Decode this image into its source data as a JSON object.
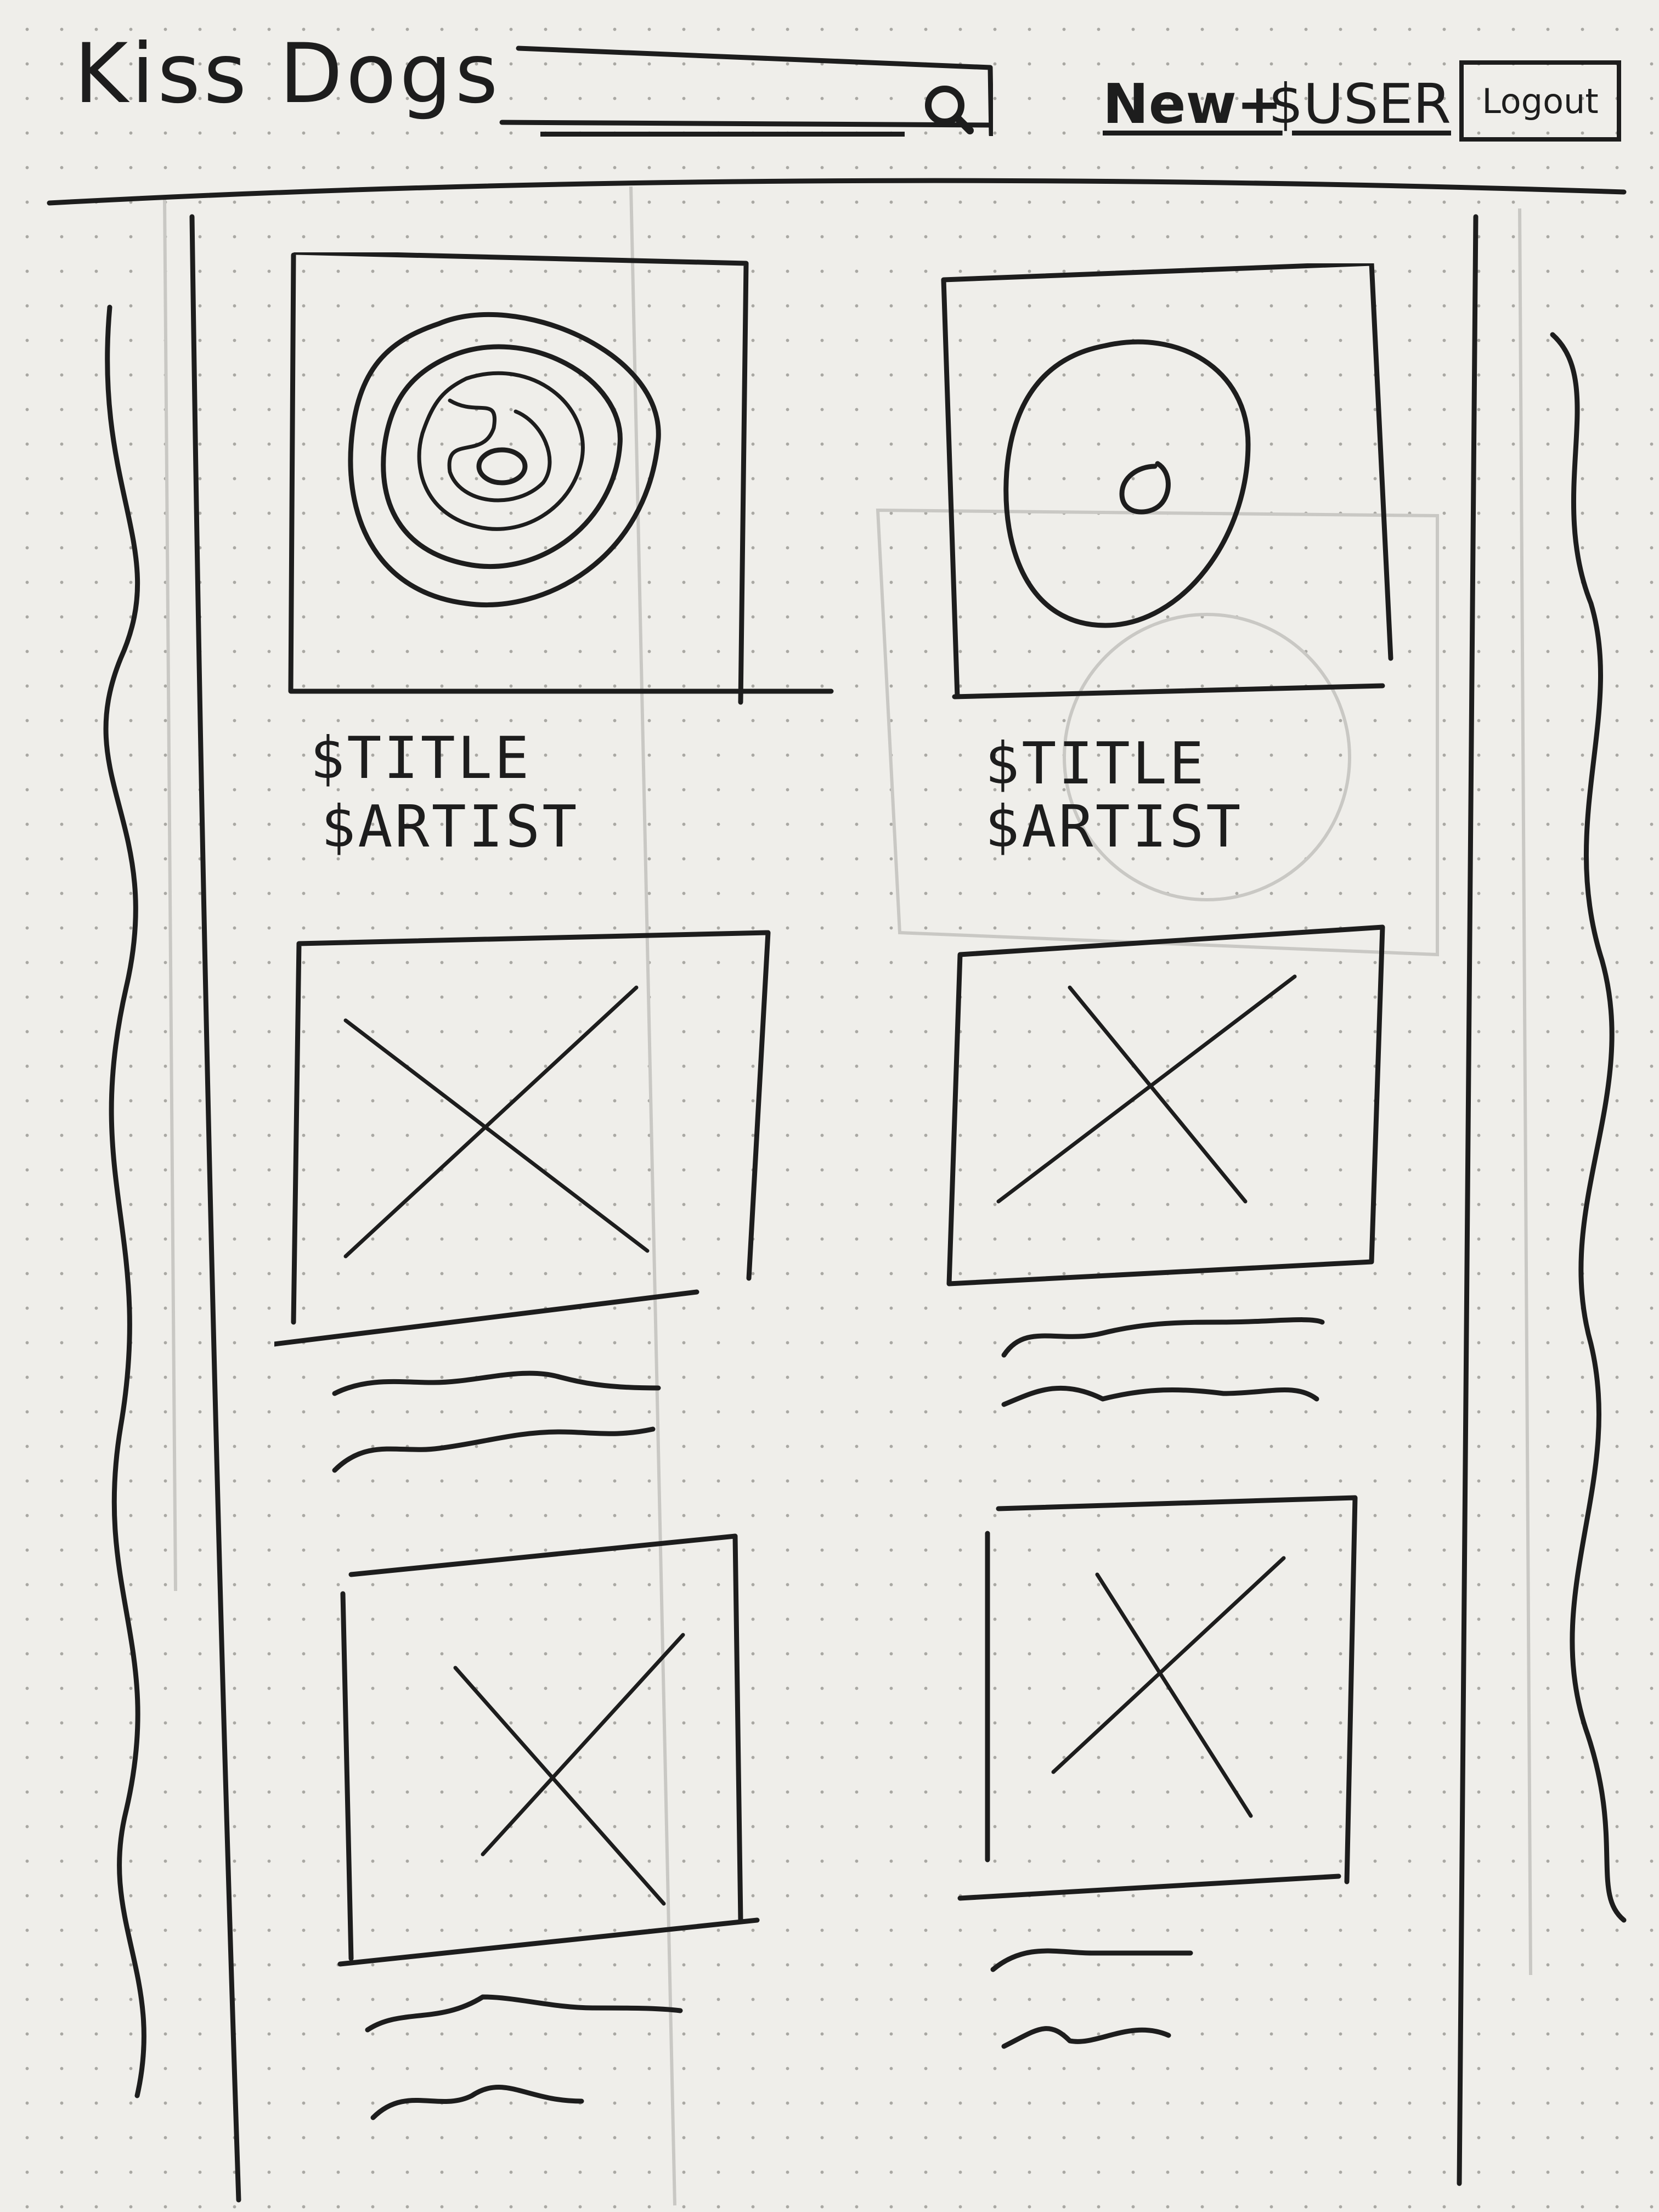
{
  "header": {
    "brand": "Kiss Dogs",
    "search": {
      "value": "",
      "placeholder": ""
    },
    "nav": {
      "new_label": "New+",
      "user_label": "$USER",
      "logout_label": "Logout"
    }
  },
  "listings": [
    {
      "image": "vinyl-record",
      "title": "$TITLE",
      "artist": "$ARTIST"
    },
    {
      "image": "vinyl-record",
      "title": "$TITLE",
      "artist": "$ARTIST"
    },
    {
      "image": "placeholder",
      "title": "",
      "artist": ""
    },
    {
      "image": "placeholder",
      "title": "",
      "artist": ""
    },
    {
      "image": "placeholder",
      "title": "",
      "artist": ""
    },
    {
      "image": "placeholder",
      "title": "",
      "artist": ""
    }
  ],
  "colors": {
    "ink": "#1d1d1d",
    "paper": "#efeeea",
    "dot": "#a9a8a3"
  }
}
